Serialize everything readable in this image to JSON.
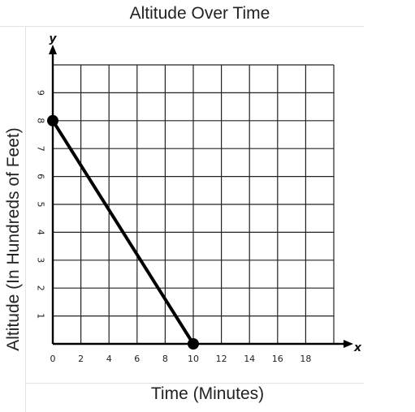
{
  "chart_data": {
    "type": "line",
    "title": "Altitude Over Time",
    "xlabel": "Time (Minutes)",
    "ylabel": "Altitude (In Hundreds of Feet)",
    "x_axis_letter": "x",
    "y_axis_letter": "y",
    "xlim": [
      0,
      20
    ],
    "ylim": [
      0,
      10
    ],
    "x_ticks": [
      0,
      2,
      4,
      6,
      8,
      10,
      12,
      14,
      16,
      18
    ],
    "x_tick_labels": [
      "0",
      "2",
      "4",
      "6",
      "8",
      "10",
      "12",
      "14",
      "16",
      "18"
    ],
    "y_ticks": [
      1,
      2,
      3,
      4,
      5,
      6,
      7,
      8,
      9
    ],
    "y_tick_labels": [
      "1",
      "2",
      "3",
      "4",
      "5",
      "6",
      "7",
      "8",
      "9"
    ],
    "grid": true,
    "series": [
      {
        "points": [
          {
            "x": 0,
            "y": 8
          },
          {
            "x": 10,
            "y": 0
          }
        ],
        "markers": true
      }
    ],
    "colors": {
      "line": "#000000",
      "grid": "#222222",
      "axis": "#000000"
    }
  }
}
